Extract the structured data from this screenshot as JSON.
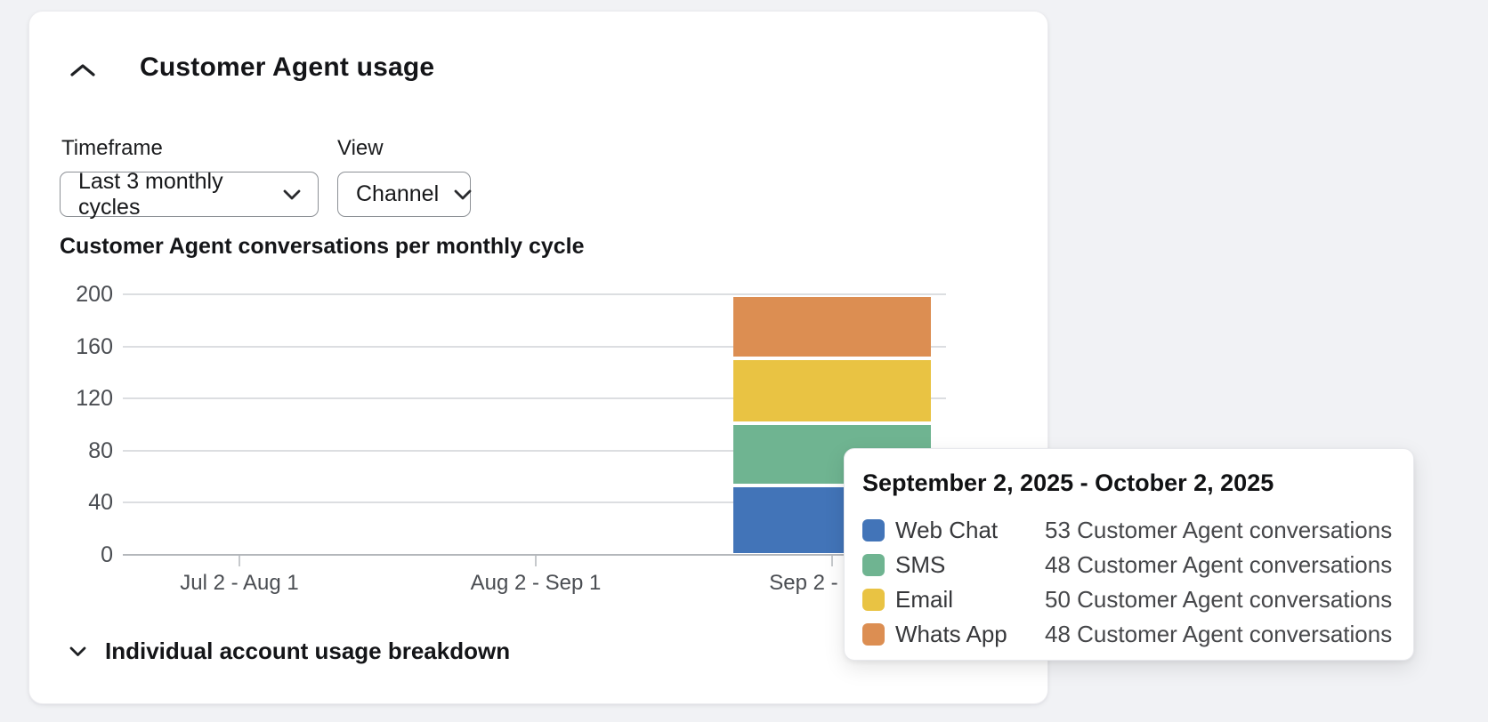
{
  "card": {
    "title": "Customer Agent usage",
    "collapse_icon": "chevron-up-icon",
    "controls": {
      "timeframe_label": "Timeframe",
      "timeframe_value": "Last 3 monthly cycles",
      "view_label": "View",
      "view_value": "Channel"
    },
    "footer": {
      "label": "Individual account usage breakdown",
      "expand_icon": "chevron-down-icon"
    }
  },
  "chart_data": {
    "type": "bar",
    "stacked": true,
    "title": "Customer Agent conversations per monthly cycle",
    "categories": [
      "Jul 2 - Aug 1",
      "Aug 2 - Sep 1",
      "Sep 2 - Oct 2"
    ],
    "series": [
      {
        "name": "Web Chat",
        "color": "#4274B8",
        "values": [
          0,
          0,
          53
        ]
      },
      {
        "name": "SMS",
        "color": "#6FB491",
        "values": [
          0,
          0,
          48
        ]
      },
      {
        "name": "Email",
        "color": "#E9C343",
        "values": [
          0,
          0,
          50
        ]
      },
      {
        "name": "Whats App",
        "color": "#DC8E52",
        "values": [
          0,
          0,
          48
        ]
      }
    ],
    "xlabel": "",
    "ylabel": "",
    "ylim": [
      0,
      200
    ],
    "yticks": [
      0,
      40,
      80,
      120,
      160,
      200
    ],
    "grid": true,
    "legend_position": "tooltip-only"
  },
  "tooltip": {
    "title": "September 2, 2025 - October 2, 2025",
    "unit_suffix": "Customer Agent conversations",
    "rows": [
      {
        "label": "Web Chat",
        "value": 53,
        "color": "#4274B8"
      },
      {
        "label": "SMS",
        "value": 48,
        "color": "#6FB491"
      },
      {
        "label": "Email",
        "value": 50,
        "color": "#E9C343"
      },
      {
        "label": "Whats App",
        "value": 48,
        "color": "#DC8E52"
      }
    ]
  },
  "colors": {
    "page_background": "#f1f2f5",
    "card_background": "#ffffff",
    "grid_line": "#dcdee1",
    "axis_line": "#b4b7bb",
    "axis_text": "#4a4d52"
  }
}
